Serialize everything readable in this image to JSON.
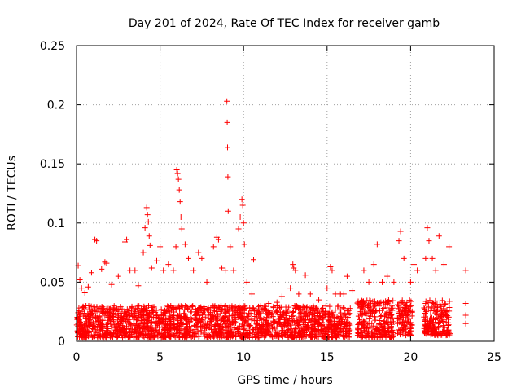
{
  "chart_data": {
    "type": "scatter",
    "title": "Day 201 of 2024, Rate Of TEC Index for receiver gamb",
    "xlabel": "GPS time / hours",
    "ylabel": "ROTI / TECUs",
    "xlim": [
      0,
      25
    ],
    "ylim": [
      0,
      0.25
    ],
    "x_ticks": [
      0,
      5,
      10,
      15,
      20,
      25
    ],
    "x_tick_labels": [
      "0",
      "5",
      "10",
      "15",
      "20",
      "25"
    ],
    "y_ticks": [
      0,
      0.05,
      0.1,
      0.15,
      0.2,
      0.25
    ],
    "y_tick_labels": [
      "0",
      "0.05",
      "0.1",
      "0.15",
      "0.2",
      "0.25"
    ],
    "grid": true,
    "marker": "+",
    "marker_color": "#ff0000",
    "series": [
      {
        "name": "ROTI",
        "points": [
          [
            0.1,
            0.064
          ],
          [
            0.2,
            0.052
          ],
          [
            0.3,
            0.045
          ],
          [
            0.5,
            0.041
          ],
          [
            0.7,
            0.046
          ],
          [
            0.9,
            0.058
          ],
          [
            1.1,
            0.086
          ],
          [
            1.2,
            0.085
          ],
          [
            1.5,
            0.061
          ],
          [
            1.7,
            0.067
          ],
          [
            1.8,
            0.066
          ],
          [
            2.1,
            0.048
          ],
          [
            2.5,
            0.055
          ],
          [
            2.9,
            0.084
          ],
          [
            3.0,
            0.086
          ],
          [
            3.2,
            0.06
          ],
          [
            3.5,
            0.06
          ],
          [
            3.7,
            0.047
          ],
          [
            4.0,
            0.075
          ],
          [
            4.1,
            0.096
          ],
          [
            4.2,
            0.113
          ],
          [
            4.25,
            0.107
          ],
          [
            4.3,
            0.101
          ],
          [
            4.35,
            0.089
          ],
          [
            4.4,
            0.081
          ],
          [
            4.5,
            0.062
          ],
          [
            4.8,
            0.068
          ],
          [
            5.0,
            0.08
          ],
          [
            5.2,
            0.06
          ],
          [
            5.5,
            0.065
          ],
          [
            5.8,
            0.06
          ],
          [
            5.95,
            0.08
          ],
          [
            6.0,
            0.145
          ],
          [
            6.05,
            0.142
          ],
          [
            6.1,
            0.137
          ],
          [
            6.15,
            0.128
          ],
          [
            6.2,
            0.118
          ],
          [
            6.25,
            0.105
          ],
          [
            6.3,
            0.095
          ],
          [
            6.5,
            0.082
          ],
          [
            6.7,
            0.07
          ],
          [
            7.0,
            0.06
          ],
          [
            7.3,
            0.075
          ],
          [
            7.5,
            0.07
          ],
          [
            7.8,
            0.05
          ],
          [
            8.2,
            0.08
          ],
          [
            8.4,
            0.088
          ],
          [
            8.5,
            0.086
          ],
          [
            8.7,
            0.062
          ],
          [
            8.9,
            0.06
          ],
          [
            9.0,
            0.203
          ],
          [
            9.02,
            0.185
          ],
          [
            9.04,
            0.164
          ],
          [
            9.06,
            0.139
          ],
          [
            9.08,
            0.11
          ],
          [
            9.2,
            0.08
          ],
          [
            9.4,
            0.06
          ],
          [
            9.7,
            0.095
          ],
          [
            9.8,
            0.105
          ],
          [
            9.9,
            0.12
          ],
          [
            9.95,
            0.115
          ],
          [
            10.0,
            0.1
          ],
          [
            10.05,
            0.082
          ],
          [
            10.2,
            0.05
          ],
          [
            10.5,
            0.04
          ],
          [
            10.6,
            0.069
          ],
          [
            11.0,
            0.03
          ],
          [
            11.5,
            0.032
          ],
          [
            12.0,
            0.033
          ],
          [
            12.3,
            0.038
          ],
          [
            12.8,
            0.045
          ],
          [
            12.95,
            0.065
          ],
          [
            13.0,
            0.062
          ],
          [
            13.1,
            0.06
          ],
          [
            13.3,
            0.04
          ],
          [
            13.7,
            0.056
          ],
          [
            14.0,
            0.04
          ],
          [
            14.5,
            0.035
          ],
          [
            15.0,
            0.045
          ],
          [
            15.2,
            0.063
          ],
          [
            15.3,
            0.06
          ],
          [
            15.5,
            0.04
          ],
          [
            15.8,
            0.04
          ],
          [
            16.0,
            0.04
          ],
          [
            16.2,
            0.055
          ],
          [
            16.5,
            0.043
          ],
          [
            17.2,
            0.06
          ],
          [
            17.5,
            0.05
          ],
          [
            17.8,
            0.065
          ],
          [
            18.0,
            0.082
          ],
          [
            18.3,
            0.05
          ],
          [
            18.6,
            0.055
          ],
          [
            19.0,
            0.05
          ],
          [
            19.3,
            0.085
          ],
          [
            19.4,
            0.093
          ],
          [
            19.6,
            0.07
          ],
          [
            20.0,
            0.05
          ],
          [
            20.2,
            0.065
          ],
          [
            20.4,
            0.06
          ],
          [
            20.9,
            0.07
          ],
          [
            21.0,
            0.096
          ],
          [
            21.1,
            0.085
          ],
          [
            21.3,
            0.07
          ],
          [
            21.5,
            0.06
          ],
          [
            21.7,
            0.089
          ],
          [
            22.0,
            0.065
          ],
          [
            22.3,
            0.08
          ],
          [
            23.3,
            0.06
          ],
          [
            23.3,
            0.032
          ],
          [
            23.3,
            0.022
          ],
          [
            23.3,
            0.015
          ]
        ]
      }
    ],
    "dense_coverage": [
      {
        "x_range": [
          0,
          16.4
        ],
        "y_range": [
          0.003,
          0.03
        ]
      },
      {
        "x_range": [
          16.8,
          19.0
        ],
        "y_range": [
          0.003,
          0.035
        ]
      },
      {
        "x_range": [
          19.2,
          20.1
        ],
        "y_range": [
          0.005,
          0.035
        ]
      },
      {
        "x_range": [
          20.8,
          22.4
        ],
        "y_range": [
          0.005,
          0.035
        ]
      }
    ]
  }
}
